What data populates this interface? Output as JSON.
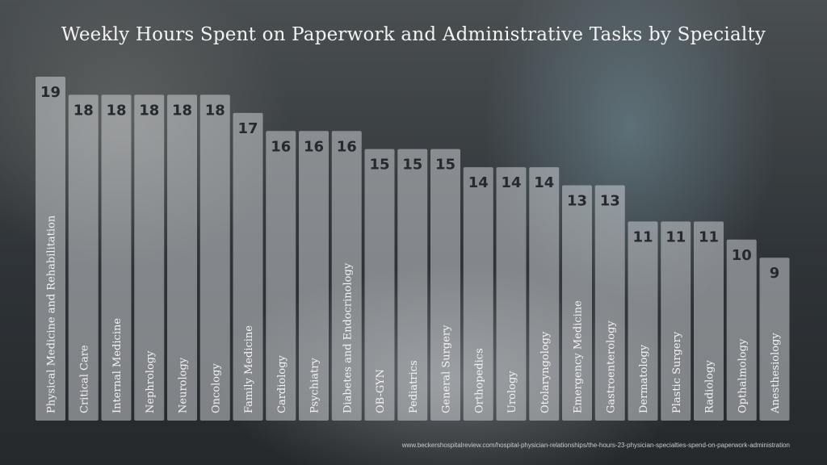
{
  "title": "Weekly Hours Spent on Paperwork and Administrative Tasks by Specialty",
  "source": "www.beckershospitalreview.com/hospital-physician-relationships/the-hours-23-physician-specialties-spend-on-paperwork-administration",
  "chart_data": {
    "type": "bar",
    "title": "Weekly Hours Spent on Paperwork and Administrative Tasks by Specialty",
    "xlabel": "",
    "ylabel": "",
    "ylim": [
      0,
      19
    ],
    "grid": false,
    "legend": "none",
    "categories": [
      "Physical Medicine and Rehabilitation",
      "Critical Care",
      "Internal Medicine",
      "Nephrology",
      "Neurology",
      "Oncology",
      "Family Medicine",
      "Cardiology",
      "Psychiatry",
      "Diabetes and Endocrinology",
      "OB-GYN",
      "Pediatrics",
      "General Surgery",
      "Orthopedics",
      "Urology",
      "Otolaryngology",
      "Emergency Medicine",
      "Gastroenterology",
      "Dermatology",
      "Plastic Surgery",
      "Radiology",
      "Opthalmology",
      "Anesthesiology"
    ],
    "values": [
      19,
      18,
      18,
      18,
      18,
      18,
      17,
      16,
      16,
      16,
      15,
      15,
      15,
      14,
      14,
      14,
      13,
      13,
      11,
      11,
      11,
      10,
      9
    ],
    "data_labels": [
      "19",
      "18",
      "18",
      "18",
      "18",
      "18",
      "17",
      "16",
      "16",
      "16",
      "15",
      "15",
      "15",
      "14",
      "14",
      "14",
      "13",
      "13",
      "11",
      "11",
      "11",
      "10",
      "9"
    ],
    "bar_color": "#d7dadd"
  }
}
